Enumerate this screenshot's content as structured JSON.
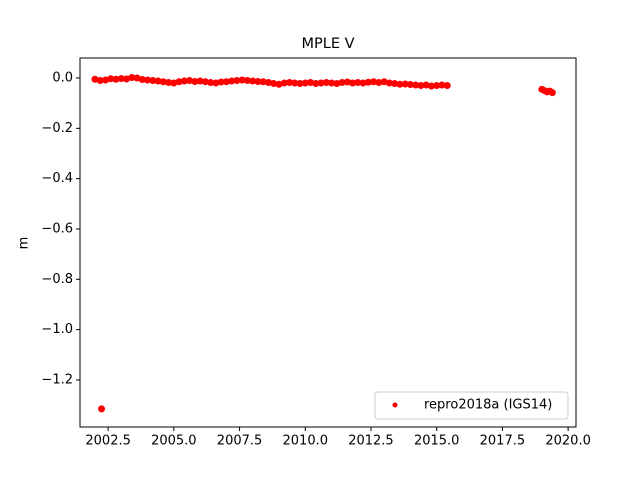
{
  "chart_data": {
    "type": "scatter",
    "title": "MPLE V",
    "ylabel": "m",
    "x": [
      2002.0,
      2002.2,
      2002.4,
      2002.6,
      2002.8,
      2003.0,
      2003.2,
      2003.4,
      2003.6,
      2003.8,
      2004.0,
      2004.2,
      2004.4,
      2004.6,
      2004.8,
      2005.0,
      2005.2,
      2005.4,
      2005.6,
      2005.8,
      2006.0,
      2006.2,
      2006.4,
      2006.6,
      2006.8,
      2007.0,
      2007.2,
      2007.4,
      2007.6,
      2007.8,
      2008.0,
      2008.2,
      2008.4,
      2008.6,
      2008.8,
      2009.0,
      2009.2,
      2009.4,
      2009.6,
      2009.8,
      2010.0,
      2010.2,
      2010.4,
      2010.6,
      2010.8,
      2011.0,
      2011.2,
      2011.4,
      2011.6,
      2011.8,
      2012.0,
      2012.2,
      2012.4,
      2012.6,
      2012.8,
      2013.0,
      2013.2,
      2013.4,
      2013.6,
      2013.8,
      2014.0,
      2014.2,
      2014.4,
      2014.6,
      2014.8,
      2015.0,
      2015.2,
      2015.4,
      2019.0,
      2019.1,
      2019.2,
      2019.3,
      2019.4,
      2002.25
    ],
    "series": [
      {
        "name": "repro2018a (IGS14)",
        "color": "#ff0000",
        "values": [
          -0.005,
          -0.01,
          -0.008,
          -0.003,
          -0.005,
          -0.002,
          -0.004,
          0.002,
          0.0,
          -0.006,
          -0.008,
          -0.01,
          -0.012,
          -0.015,
          -0.018,
          -0.02,
          -0.015,
          -0.012,
          -0.01,
          -0.014,
          -0.012,
          -0.015,
          -0.018,
          -0.02,
          -0.016,
          -0.015,
          -0.012,
          -0.01,
          -0.008,
          -0.01,
          -0.012,
          -0.014,
          -0.015,
          -0.018,
          -0.022,
          -0.025,
          -0.02,
          -0.018,
          -0.02,
          -0.022,
          -0.02,
          -0.018,
          -0.022,
          -0.02,
          -0.018,
          -0.02,
          -0.022,
          -0.018,
          -0.016,
          -0.02,
          -0.018,
          -0.02,
          -0.017,
          -0.015,
          -0.018,
          -0.015,
          -0.02,
          -0.022,
          -0.025,
          -0.024,
          -0.026,
          -0.028,
          -0.03,
          -0.028,
          -0.032,
          -0.03,
          -0.028,
          -0.03,
          -0.045,
          -0.05,
          -0.055,
          -0.052,
          -0.058,
          -1.315
        ]
      }
    ],
    "xlim": [
      2001.43,
      2020.3
    ],
    "xticks": [
      2002.5,
      {
        "value": 2005.0,
        "label": "2005.0"
      },
      2007.5,
      {
        "value": 2010.0,
        "label": "2010.0"
      },
      2012.5,
      {
        "value": 2015.0,
        "label": "2015.0"
      },
      2017.5,
      {
        "value": 2020.0,
        "label": "2020.0"
      }
    ],
    "ylim": [
      -1.387,
      0.0795
    ],
    "yticks": [
      {
        "value": 0.0,
        "label": "0.0"
      },
      {
        "value": -0.2,
        "label": "−0.2"
      },
      {
        "value": -0.4,
        "label": "−0.4"
      },
      {
        "value": -0.6,
        "label": "−0.6"
      },
      {
        "value": -0.8,
        "label": "−0.8"
      },
      {
        "value": -1.0,
        "label": "−1.0"
      },
      {
        "value": -1.2,
        "label": "−1.2"
      }
    ],
    "legend": "lower right"
  }
}
